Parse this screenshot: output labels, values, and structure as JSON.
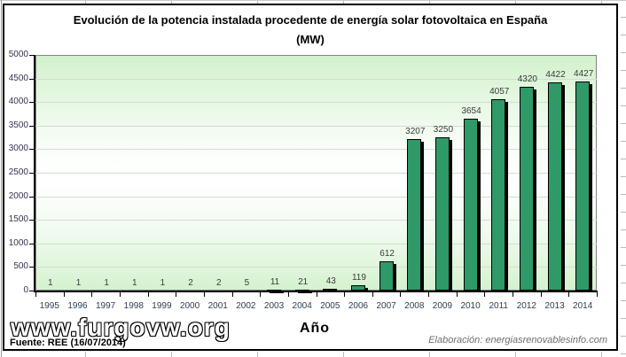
{
  "chart_data": {
    "type": "bar",
    "title": "Evolución de la potencia instalada procedente de energía solar fotovoltaica en España",
    "subtitle": "(MW)",
    "xlabel": "Año",
    "ylabel": "",
    "categories": [
      "1995",
      "1996",
      "1997",
      "1998",
      "1999",
      "2000",
      "2001",
      "2002",
      "2003",
      "2004",
      "2005",
      "2006",
      "2007",
      "2008",
      "2009",
      "2010",
      "2011",
      "2012",
      "2013",
      "2014"
    ],
    "values": [
      1,
      1,
      1,
      1,
      1,
      2,
      2,
      5,
      11,
      21,
      43,
      119,
      612,
      3207,
      3250,
      3654,
      4057,
      4320,
      4422,
      4427
    ],
    "ylim": [
      0,
      5000
    ],
    "ytick_step": 500,
    "yticks": [
      "0",
      "500",
      "1000",
      "1500",
      "2000",
      "2500",
      "3000",
      "3500",
      "4000",
      "4500",
      "5000"
    ],
    "grid": true,
    "legend": "none",
    "bar_color": "#2f9967",
    "bar_border_color": "#000000",
    "bar_shadow_color": "#000000",
    "plot_bg_gradient": [
      "#d2f1cc",
      "#ffffff",
      "#d4f2ce"
    ]
  },
  "footer": {
    "watermark": "www.furgovw.org",
    "source": "Fuente: REE (16/07/2014)",
    "credit": "Elaboración: energiasrenovablesinfo.com"
  }
}
